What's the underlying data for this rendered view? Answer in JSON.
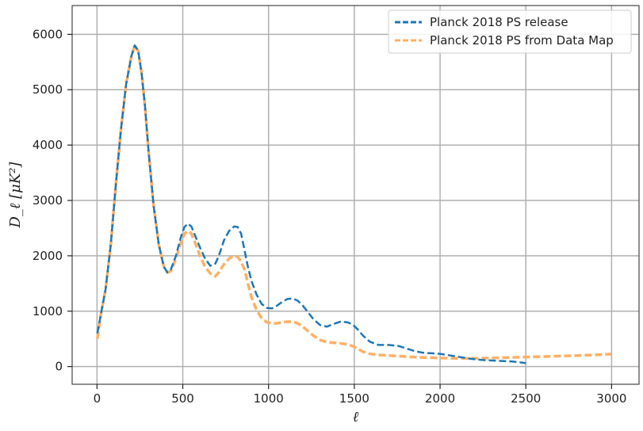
{
  "chart_data": {
    "type": "line",
    "xlabel": "ℓ",
    "ylabel": "D_ℓ [μK²]",
    "xlim": [
      -145,
      3160
    ],
    "ylim": [
      -320,
      6520
    ],
    "xticks": [
      0,
      500,
      1000,
      1500,
      2000,
      2500,
      3000
    ],
    "yticks": [
      0,
      1000,
      2000,
      3000,
      4000,
      5000,
      6000
    ],
    "grid": true,
    "legend_position": "top-right",
    "series": [
      {
        "name": "Planck 2018 PS release",
        "color": "#1f77b4",
        "style": "dashed",
        "x": [
          2,
          20,
          50,
          80,
          110,
          140,
          170,
          200,
          220,
          240,
          260,
          280,
          300,
          330,
          360,
          390,
          410,
          430,
          460,
          490,
          510,
          530,
          550,
          570,
          600,
          630,
          660,
          690,
          710,
          740,
          770,
          800,
          820,
          840,
          860,
          880,
          900,
          930,
          960,
          990,
          1020,
          1050,
          1080,
          1110,
          1140,
          1170,
          1200,
          1230,
          1260,
          1300,
          1340,
          1380,
          1420,
          1460,
          1490,
          1520,
          1550,
          1590,
          1640,
          1700,
          1760,
          1800,
          1850,
          1900,
          1950,
          2000,
          2060,
          2120,
          2180,
          2240,
          2300,
          2360,
          2420,
          2480,
          2500
        ],
        "y": [
          600,
          900,
          1400,
          2200,
          3300,
          4300,
          5100,
          5600,
          5800,
          5700,
          5300,
          4700,
          3900,
          2900,
          2200,
          1800,
          1700,
          1750,
          2000,
          2350,
          2520,
          2580,
          2530,
          2380,
          2150,
          1950,
          1820,
          1860,
          2000,
          2280,
          2450,
          2530,
          2520,
          2400,
          2100,
          1800,
          1550,
          1300,
          1130,
          1060,
          1050,
          1100,
          1170,
          1220,
          1230,
          1190,
          1100,
          980,
          860,
          750,
          720,
          770,
          810,
          800,
          760,
          670,
          560,
          450,
          390,
          390,
          370,
          330,
          280,
          250,
          240,
          230,
          200,
          170,
          140,
          120,
          110,
          100,
          90,
          70,
          60
        ]
      },
      {
        "name": "Planck 2018 PS from Data Map",
        "color": "#ffb066",
        "style": "dashed",
        "x": [
          2,
          20,
          50,
          80,
          110,
          140,
          170,
          200,
          220,
          240,
          260,
          280,
          300,
          330,
          360,
          390,
          410,
          430,
          460,
          490,
          510,
          530,
          550,
          570,
          600,
          630,
          660,
          690,
          710,
          740,
          770,
          800,
          820,
          840,
          860,
          880,
          900,
          930,
          960,
          990,
          1020,
          1050,
          1080,
          1110,
          1140,
          1170,
          1200,
          1230,
          1260,
          1300,
          1340,
          1380,
          1420,
          1460,
          1490,
          1520,
          1550,
          1590,
          1640,
          1700,
          1760,
          1800,
          1850,
          1900,
          1950,
          2000,
          2060,
          2120,
          2180,
          2240,
          2300,
          2360,
          2420,
          2480,
          2540,
          2600,
          2700,
          2800,
          2900,
          3000
        ],
        "y": [
          500,
          900,
          1400,
          2200,
          3300,
          4300,
          5100,
          5600,
          5800,
          5700,
          5300,
          4700,
          3900,
          2900,
          2200,
          1800,
          1700,
          1720,
          1950,
          2250,
          2400,
          2450,
          2400,
          2250,
          2000,
          1800,
          1680,
          1630,
          1700,
          1850,
          1950,
          2000,
          1980,
          1900,
          1750,
          1500,
          1250,
          1020,
          870,
          800,
          780,
          780,
          800,
          810,
          810,
          780,
          720,
          640,
          560,
          480,
          440,
          430,
          420,
          400,
          370,
          320,
          270,
          230,
          210,
          200,
          190,
          180,
          170,
          165,
          160,
          155,
          150,
          150,
          150,
          150,
          155,
          160,
          165,
          170,
          175,
          180,
          190,
          200,
          210,
          225
        ]
      }
    ]
  }
}
